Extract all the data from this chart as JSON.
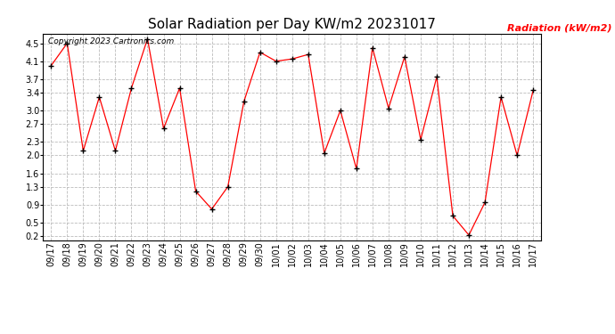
{
  "title": "Solar Radiation per Day KW/m2 20231017",
  "ylabel": "Radiation (kW/m2)",
  "copyright": "Copyright 2023 Cartronics.com",
  "dates": [
    "09/17",
    "09/18",
    "09/19",
    "09/20",
    "09/21",
    "09/22",
    "09/23",
    "09/24",
    "09/25",
    "09/26",
    "09/27",
    "09/28",
    "09/29",
    "09/30",
    "10/01",
    "10/02",
    "10/03",
    "10/04",
    "10/05",
    "10/06",
    "10/07",
    "10/08",
    "10/09",
    "10/10",
    "10/11",
    "10/12",
    "10/13",
    "10/14",
    "10/15",
    "10/16",
    "10/17"
  ],
  "values": [
    4.0,
    4.5,
    2.1,
    3.3,
    2.1,
    3.5,
    4.6,
    2.6,
    3.5,
    1.2,
    0.8,
    1.3,
    3.2,
    4.3,
    4.1,
    4.15,
    4.25,
    2.05,
    3.0,
    1.7,
    4.4,
    3.05,
    4.2,
    2.35,
    3.75,
    0.65,
    0.22,
    0.95,
    3.3,
    2.0,
    3.45
  ],
  "line_color": "red",
  "marker_color": "black",
  "ylabel_color": "red",
  "copyright_color": "black",
  "title_color": "black",
  "grid_color": "#bbbbbb",
  "bg_color": "white",
  "ylim_min": 0.1,
  "ylim_max": 4.72,
  "yticks": [
    0.2,
    0.5,
    0.9,
    1.3,
    1.6,
    2.0,
    2.3,
    2.7,
    3.0,
    3.4,
    3.7,
    4.1,
    4.5
  ],
  "title_fontsize": 11,
  "label_fontsize": 8,
  "tick_fontsize": 7,
  "copyright_fontsize": 6.5
}
